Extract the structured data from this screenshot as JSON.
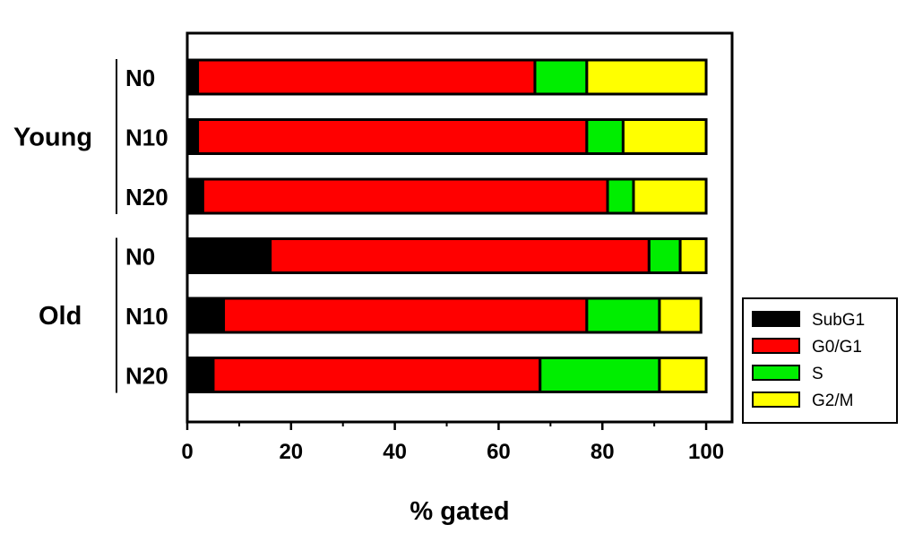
{
  "chart_data": {
    "type": "bar",
    "orientation": "horizontal",
    "stacked": true,
    "xlabel": "% gated",
    "ylabel": "",
    "xlim": [
      0,
      105
    ],
    "xticks": [
      0,
      20,
      40,
      60,
      80,
      100
    ],
    "grid": false,
    "legend_position": "right",
    "groups": [
      {
        "label": "Young",
        "categories": [
          "N0",
          "N10",
          "N20"
        ]
      },
      {
        "label": "Old",
        "categories": [
          "N0",
          "N10",
          "N20"
        ]
      }
    ],
    "categories": [
      "N0",
      "N10",
      "N20",
      "N0",
      "N10",
      "N20"
    ],
    "series": [
      {
        "name": "SubG1",
        "color": "#000000",
        "values": [
          2,
          2,
          3,
          16,
          7,
          5
        ]
      },
      {
        "name": "G0/G1",
        "color": "#ff0000",
        "values": [
          65,
          75,
          78,
          73,
          70,
          63
        ]
      },
      {
        "name": "S",
        "color": "#00ee00",
        "values": [
          10,
          7,
          5,
          6,
          14,
          23
        ]
      },
      {
        "name": "G2/M",
        "color": "#ffff00",
        "values": [
          23,
          16,
          14,
          5,
          8,
          9
        ]
      }
    ]
  }
}
